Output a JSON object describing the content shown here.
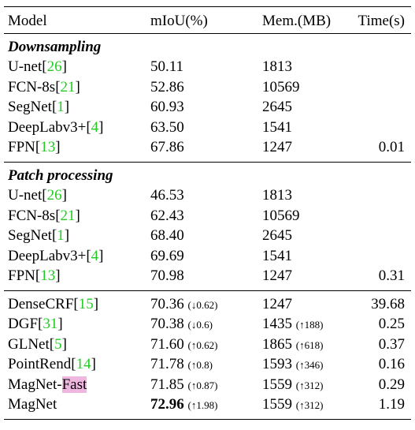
{
  "header": {
    "model": "Model",
    "miou": "mIoU(%)",
    "mem": "Mem.(MB)",
    "time": "Time(s)"
  },
  "sections": [
    {
      "title": "Downsampling",
      "rows": [
        {
          "model": "U-net",
          "cite": "[26]",
          "miou": "50.11",
          "mem": "1813"
        },
        {
          "model": "FCN-8s",
          "cite": "[21]",
          "miou": "52.86",
          "mem": "10569"
        },
        {
          "model": "SegNet",
          "cite": "[1]",
          "miou": "60.93",
          "mem": "2645"
        },
        {
          "model": "DeepLabv3+",
          "cite": "[4]",
          "miou": "63.50",
          "mem": "1541"
        },
        {
          "model": "FPN",
          "cite": "[13]",
          "miou": "67.86",
          "mem": "1247",
          "time": "0.01"
        }
      ]
    },
    {
      "title": "Patch processing",
      "rows": [
        {
          "model": "U-net",
          "cite": "[26]",
          "miou": "46.53",
          "mem": "1813"
        },
        {
          "model": "FCN-8s",
          "cite": "[21]",
          "miou": "62.43",
          "mem": "10569"
        },
        {
          "model": "SegNet",
          "cite": "[1]",
          "miou": "68.40",
          "mem": "2645"
        },
        {
          "model": "DeepLabv3+",
          "cite": "[4]",
          "miou": "69.69",
          "mem": "1541"
        },
        {
          "model": "FPN",
          "cite": "[13]",
          "miou": "70.98",
          "mem": "1247",
          "time": "0.31"
        }
      ]
    },
    {
      "rows": [
        {
          "model": "DenseCRF",
          "cite": "[15]",
          "miou": "70.36",
          "miou_delta": "(↓0.62)",
          "mem": "1247",
          "time": "39.68"
        },
        {
          "model": "DGF",
          "cite": "[31]",
          "miou": "70.38",
          "miou_delta": "(↓0.6)",
          "mem": "1435",
          "mem_delta": "(↑188)",
          "time": "0.25"
        },
        {
          "model": "GLNet",
          "cite": "[5]",
          "miou": "71.60",
          "miou_delta": "(↑0.62)",
          "mem": "1865",
          "mem_delta": "(↑618)",
          "time": "0.37"
        },
        {
          "model": "PointRend",
          "cite": "[14]",
          "miou": "71.78",
          "miou_delta": "(↑0.8)",
          "mem": "1593",
          "mem_delta": "(↑346)",
          "time": "0.16"
        },
        {
          "model": "MagNet-",
          "highlight": "Fast",
          "miou": "71.85",
          "miou_delta": "(↑0.87)",
          "mem": "1559",
          "mem_delta": "(↑312)",
          "time": "0.29"
        },
        {
          "model": "MagNet",
          "miou": "72.96",
          "miou_bold": true,
          "miou_delta": "(↑1.98)",
          "mem": "1559",
          "mem_delta": "(↑312)",
          "time": "1.19"
        }
      ]
    }
  ]
}
